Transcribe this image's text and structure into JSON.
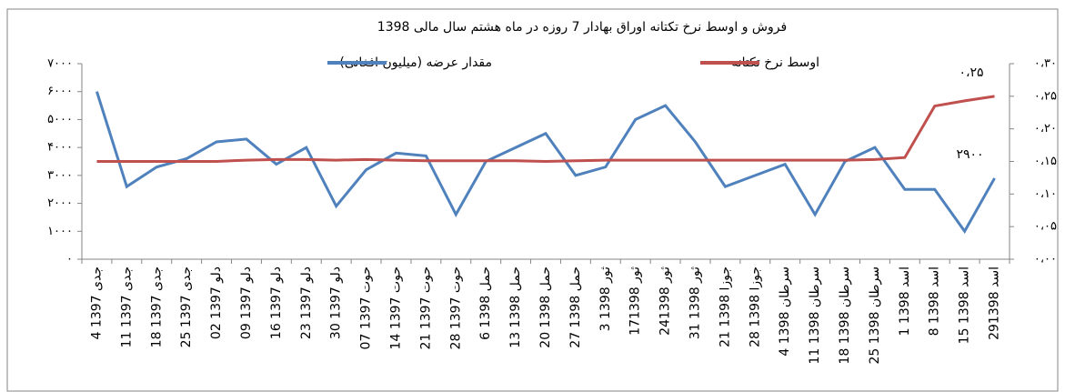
{
  "chart_data": {
    "type": "line",
    "title": "فروش و اوسط نرخ تکتانه اوراق بهادار 7 روزه در ماه  هشتم  سال مالی 1398",
    "categories": [
      "4 جدی 1397",
      "11 جدی 1397",
      "18 جدی 1397",
      "25 جدی 1397",
      "02 دلو 1397",
      "09 دلو 1397",
      "16 دلو 1397",
      "23 دلو 1397",
      "30 دلو 1397",
      "07 حوت 1397",
      "14 حوت 1397",
      "21 حوت 1397",
      "28 حوت 1397",
      "6 حمل 1398",
      "13 حمل 1398",
      "20 حمل 1398",
      "27 حمل 1398",
      "3 ثور 1398",
      "17ثور 1398",
      "24ثور 1398",
      "31 ثور 1398",
      "21 جوزا 1398",
      "28 جوزا 1398",
      "4 سرطان 1398",
      "11 سرطان 1398",
      "18 سرطان 1398",
      "25 سرطان 1398",
      "1 اسد 1398",
      "8 اسد 1398",
      "15 اسد 1398",
      "29اسد 1398"
    ],
    "series": [
      {
        "name": "مقدار عرضه (میلیون افغانی)",
        "color": "#4f81bd",
        "axis": "y",
        "values": [
          6000,
          2600,
          3300,
          3600,
          4200,
          4300,
          3400,
          4000,
          1900,
          3200,
          3800,
          3700,
          1600,
          3500,
          4000,
          4500,
          3000,
          3300,
          5000,
          5500,
          4200,
          2600,
          3000,
          3400,
          1600,
          3500,
          4000,
          2500,
          2500,
          1000,
          2900
        ],
        "value_labels": [
          null,
          null,
          null,
          null,
          null,
          null,
          null,
          null,
          null,
          null,
          null,
          null,
          null,
          null,
          null,
          null,
          null,
          null,
          null,
          null,
          null,
          null,
          null,
          null,
          null,
          null,
          null,
          null,
          null,
          null,
          "۲۹۰۰"
        ]
      },
      {
        "name": "اوسط نرخ تکتانه",
        "color": "#c0504d",
        "axis": "y2",
        "values": [
          0.15,
          0.15,
          0.15,
          0.15,
          0.15,
          0.152,
          0.153,
          0.153,
          0.152,
          0.153,
          0.152,
          0.151,
          0.151,
          0.151,
          0.151,
          0.15,
          0.151,
          0.152,
          0.152,
          0.152,
          0.152,
          0.152,
          0.152,
          0.152,
          0.152,
          0.152,
          0.153,
          0.156,
          0.235,
          0.243,
          0.25
        ],
        "value_labels": [
          null,
          null,
          null,
          null,
          null,
          null,
          null,
          null,
          null,
          null,
          null,
          null,
          null,
          null,
          null,
          null,
          null,
          null,
          null,
          null,
          null,
          null,
          null,
          null,
          null,
          null,
          null,
          null,
          null,
          null,
          "۰،۲۵"
        ]
      }
    ],
    "ylim": [
      0,
      7000
    ],
    "yticks": [
      {
        "value": 0,
        "label": "۰"
      },
      {
        "value": 1000,
        "label": "۱۰۰۰"
      },
      {
        "value": 2000,
        "label": "۲۰۰۰"
      },
      {
        "value": 3000,
        "label": "۳۰۰۰"
      },
      {
        "value": 4000,
        "label": "۴۰۰۰"
      },
      {
        "value": 5000,
        "label": "۵۰۰۰"
      },
      {
        "value": 6000,
        "label": "۶۰۰۰"
      },
      {
        "value": 7000,
        "label": "۷۰۰۰"
      }
    ],
    "y2lim": [
      0,
      0.3
    ],
    "y2ticks": [
      {
        "value": 0,
        "label": "۰،۰۰"
      },
      {
        "value": 0.05,
        "label": "۰،۰۵"
      },
      {
        "value": 0.1,
        "label": "۰،۱۰"
      },
      {
        "value": 0.15,
        "label": "۰،۱۵"
      },
      {
        "value": 0.2,
        "label": "۰،۲۰"
      },
      {
        "value": 0.25,
        "label": "۰،۲۵"
      },
      {
        "value": 0.3,
        "label": "۰،۳۰"
      }
    ],
    "grid": false
  }
}
